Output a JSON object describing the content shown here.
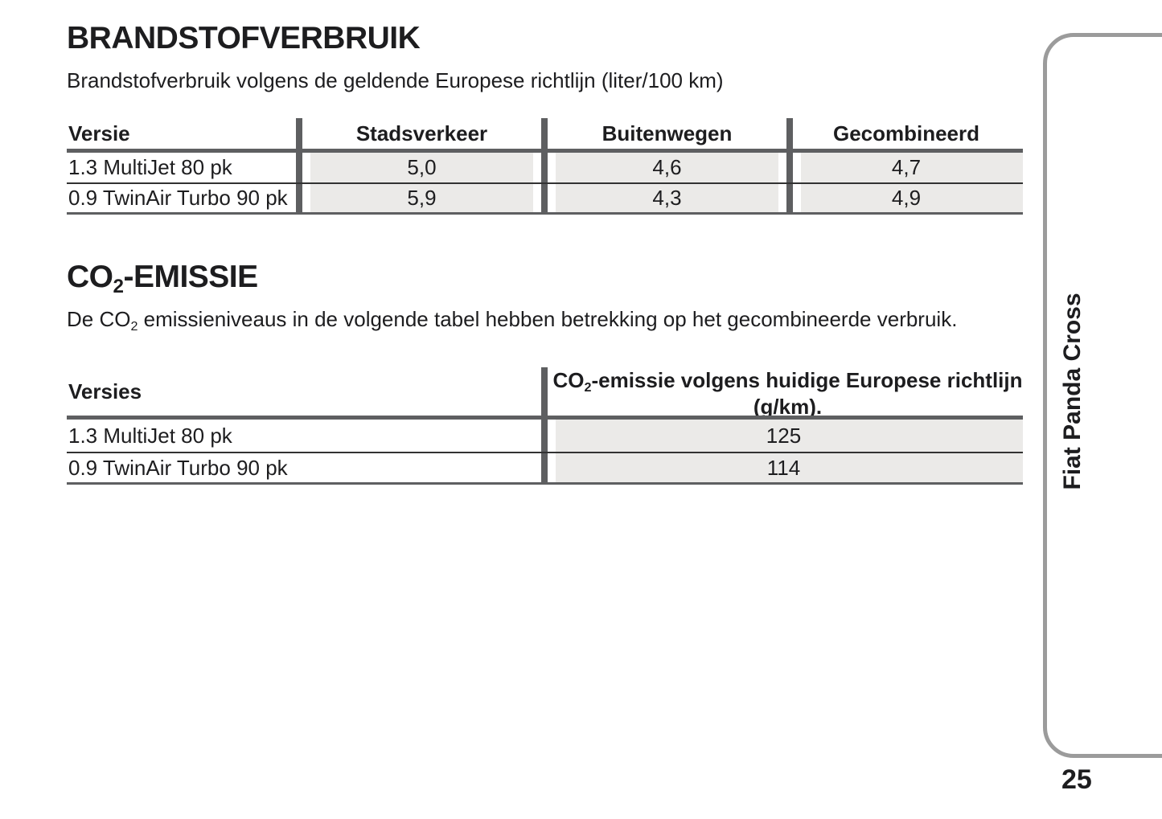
{
  "page": {
    "number": "25",
    "side_tab_label": "Fiat Panda Cross"
  },
  "colors": {
    "text": "#1d1d1f",
    "rule_gray": "#5e5f61",
    "row_line": "#323232",
    "cell_fill": "#ebeae8",
    "tab_border": "#9b9b9b"
  },
  "section1": {
    "title": "BRANDSTOFVERBRUIK",
    "subtitle": "Brandstofverbruik volgens de geldende Europese richtlijn (liter/100 km)",
    "table": {
      "headers": [
        "Versie",
        "Stadsverkeer",
        "Buitenwegen",
        "Gecombineerd"
      ],
      "rows": [
        {
          "versie": "1.3 MultiJet 80 pk",
          "stadsverkeer": "5,0",
          "buitenwegen": "4,6",
          "gecombineerd": "4,7"
        },
        {
          "versie": "0.9 TwinAir Turbo 90 pk",
          "stadsverkeer": "5,9",
          "buitenwegen": "4,3",
          "gecombineerd": "4,9"
        }
      ]
    }
  },
  "section2": {
    "title_pre": "CO",
    "title_sub": "2",
    "title_post": "-EMISSIE",
    "intro_pre": "De CO",
    "intro_sub": "2",
    "intro_post": " emissieniveaus in de volgende tabel hebben betrekking op het gecombineerde verbruik.",
    "table": {
      "header_col1": "Versies",
      "header_col2_pre": "CO",
      "header_col2_sub": "2",
      "header_col2_post": "-emissie volgens huidige Europese richtlijn",
      "header_col2_line2": "(g/km).",
      "rows": [
        {
          "versie": "1.3 MultiJet 80 pk",
          "value": "125"
        },
        {
          "versie": "0.9 TwinAir Turbo 90 pk",
          "value": "114"
        }
      ]
    }
  }
}
